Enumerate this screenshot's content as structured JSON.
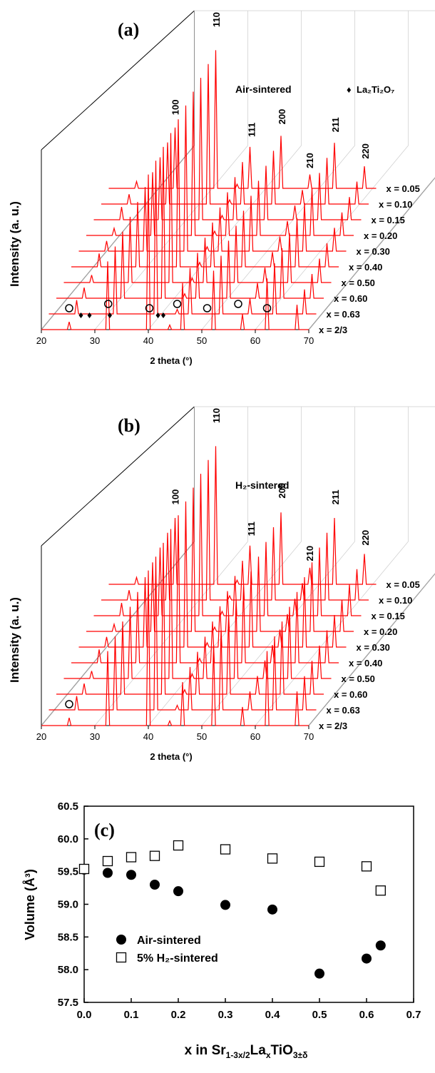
{
  "chart_data": [
    {
      "type": "line",
      "panel_label": "(a)",
      "annotation": "Air-sintered",
      "legend_symbol": "♦",
      "legend_label": "La₂Ti₂O₇",
      "xlabel": "2 theta (°)",
      "ylabel": "Intensity (a. u.)",
      "xlim": [
        20,
        70
      ],
      "x_ticks": [
        "20",
        "30",
        "40",
        "50",
        "60",
        "70"
      ],
      "series_labels": [
        "x = 0.05",
        "x = 0.10",
        "x = 0.15",
        "x = 0.20",
        "x = 0.30",
        "x = 0.40",
        "x = 0.50",
        "x = 0.60",
        "x = 0.63",
        "x = 2/3"
      ],
      "peaks": [
        {
          "label": "100",
          "two_theta": 32.3
        },
        {
          "label": "110",
          "two_theta": 39.9
        },
        {
          "label": "111",
          "two_theta": 46.5
        },
        {
          "label": "200",
          "two_theta": 52.2
        },
        {
          "label": "210",
          "two_theta": 57.4
        },
        {
          "label": "211",
          "two_theta": 62.2
        },
        {
          "label": "220",
          "two_theta": 67.8
        }
      ],
      "main_peaks_two_theta": [
        32.4,
        40.0,
        46.4,
        52.2,
        57.6,
        62.2,
        67.8
      ],
      "main_peak_heights": [
        0.44,
        1.0,
        0.3,
        0.38,
        0.1,
        0.33,
        0.16
      ],
      "circle_markers_two_theta": [
        25.2,
        32.5,
        40.2,
        45.4,
        51.0,
        56.8,
        62.2
      ],
      "diamond_markers_two_theta": [
        27.4,
        29.0,
        32.8,
        41.8,
        42.8
      ]
    },
    {
      "type": "line",
      "panel_label": "(b)",
      "annotation": "H₂-sintered",
      "xlabel": "2 theta (°)",
      "ylabel": "Intensity (a. u.)",
      "xlim": [
        20,
        70
      ],
      "x_ticks": [
        "20",
        "30",
        "40",
        "50",
        "60",
        "70"
      ],
      "series_labels": [
        "x = 0.05",
        "x = 0.10",
        "x = 0.15",
        "x = 0.20",
        "x = 0.30",
        "x = 0.40",
        "x = 0.50",
        "x = 0.60",
        "x = 0.63",
        "x = 2/3"
      ],
      "peaks": [
        {
          "label": "100",
          "two_theta": 32.3
        },
        {
          "label": "110",
          "two_theta": 39.9
        },
        {
          "label": "111",
          "two_theta": 46.5
        },
        {
          "label": "200",
          "two_theta": 52.2
        },
        {
          "label": "210",
          "two_theta": 57.4
        },
        {
          "label": "211",
          "two_theta": 62.2
        },
        {
          "label": "220",
          "two_theta": 67.8
        }
      ],
      "main_peaks_two_theta": [
        32.4,
        40.0,
        46.4,
        52.2,
        57.6,
        62.2,
        67.8
      ],
      "main_peak_heights": [
        0.48,
        1.0,
        0.28,
        0.52,
        0.12,
        0.48,
        0.22
      ],
      "circle_markers_two_theta": [
        25.2
      ]
    },
    {
      "type": "scatter",
      "panel_label": "(c)",
      "xlabel": "x in Sr",
      "xlabel_sub1": "1-3x/2",
      "xlabel_mid": "La",
      "xlabel_sub2": "x",
      "xlabel_end": "TiO",
      "xlabel_sub3": "3±δ",
      "ylabel": "Volume (Å³)",
      "xlim": [
        0.0,
        0.7
      ],
      "ylim": [
        57.5,
        60.5
      ],
      "x_ticks": [
        "0.0",
        "0.1",
        "0.2",
        "0.3",
        "0.4",
        "0.5",
        "0.6",
        "0.7"
      ],
      "y_ticks": [
        "57.5",
        "58.0",
        "58.5",
        "59.0",
        "59.5",
        "60.0",
        "60.5"
      ],
      "series": [
        {
          "name": "Air-sintered",
          "marker": "filled-circle",
          "x": [
            0.0,
            0.05,
            0.1,
            0.15,
            0.2,
            0.3,
            0.4,
            0.5,
            0.6,
            0.63
          ],
          "y": [
            59.53,
            59.48,
            59.45,
            59.3,
            59.2,
            58.99,
            58.92,
            57.94,
            58.17,
            58.37
          ]
        },
        {
          "name": "5% H₂-sintered",
          "marker": "open-square",
          "x": [
            0.0,
            0.05,
            0.1,
            0.15,
            0.2,
            0.3,
            0.4,
            0.5,
            0.6,
            0.63
          ],
          "y": [
            59.54,
            59.66,
            59.72,
            59.74,
            59.9,
            59.84,
            59.7,
            59.65,
            59.58,
            59.21
          ]
        }
      ]
    }
  ]
}
